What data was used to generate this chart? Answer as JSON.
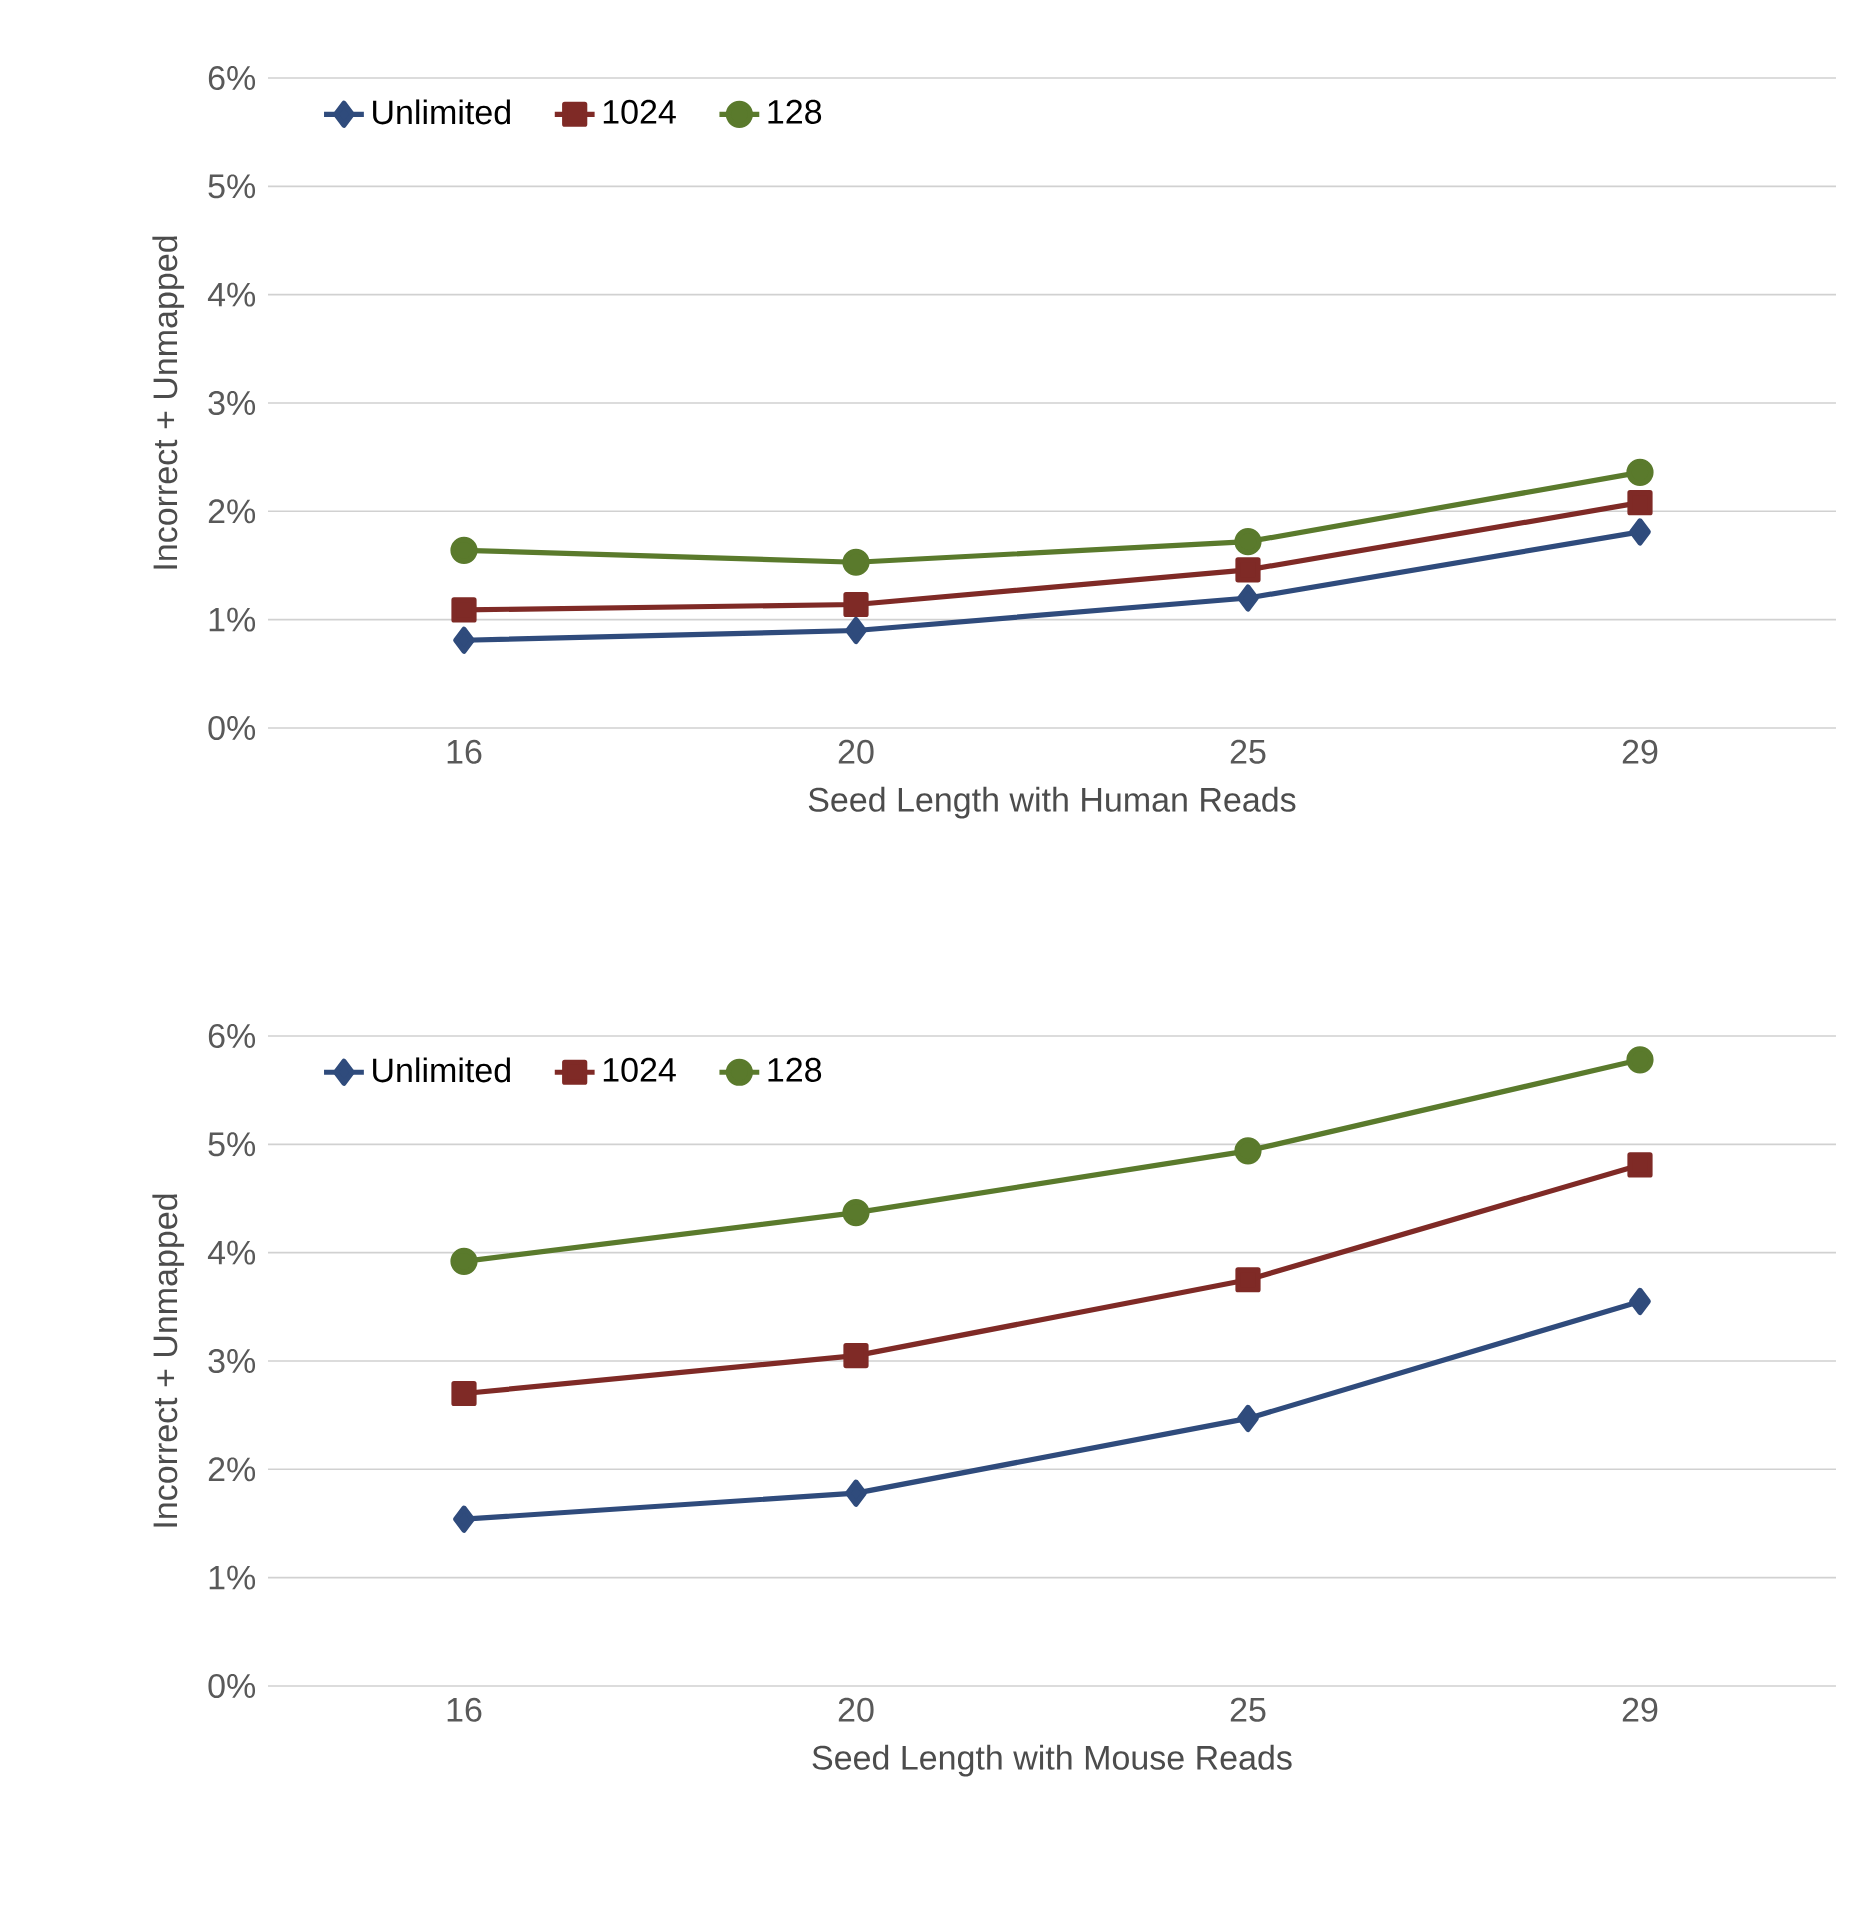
{
  "chart_data": [
    {
      "type": "line",
      "xlabel": "Seed Length with Human Reads",
      "ylabel": "Incorrect + Unmapped",
      "categories": [
        "16",
        "20",
        "25",
        "29"
      ],
      "series": [
        {
          "name": "Unlimited",
          "color": "#2f4b7c",
          "marker": "diamond",
          "values": [
            0.81,
            0.9,
            1.2,
            1.81
          ]
        },
        {
          "name": "1024",
          "color": "#7f2a26",
          "marker": "square",
          "values": [
            1.09,
            1.14,
            1.46,
            2.08
          ]
        },
        {
          "name": "128",
          "color": "#5a7a2c",
          "marker": "circle",
          "values": [
            1.64,
            1.53,
            1.72,
            2.36
          ]
        }
      ],
      "ylim": [
        0,
        6
      ],
      "yticks": [
        {
          "value": 0,
          "label": "0%"
        },
        {
          "value": 1,
          "label": "1%"
        },
        {
          "value": 2,
          "label": "2%"
        },
        {
          "value": 3,
          "label": "3%"
        },
        {
          "value": 4,
          "label": "4%"
        },
        {
          "value": 5,
          "label": "5%"
        },
        {
          "value": 6,
          "label": "6%"
        }
      ],
      "grid": "y",
      "legend": "top left",
      "line_style": "solid"
    },
    {
      "type": "line",
      "xlabel": "Seed Length with Mouse Reads",
      "ylabel": "Incorrect + Unmapped",
      "categories": [
        "16",
        "20",
        "25",
        "29"
      ],
      "series": [
        {
          "name": "Unlimited",
          "color": "#2f4b7c",
          "marker": "diamond",
          "values": [
            1.54,
            1.78,
            2.47,
            3.55
          ]
        },
        {
          "name": "1024",
          "color": "#7f2a26",
          "marker": "square",
          "values": [
            2.7,
            3.05,
            3.75,
            4.81
          ]
        },
        {
          "name": "128",
          "color": "#5a7a2c",
          "marker": "circle",
          "values": [
            3.92,
            4.37,
            4.94,
            5.78
          ]
        }
      ],
      "ylim": [
        0,
        6
      ],
      "yticks": [
        {
          "value": 0,
          "label": "0%"
        },
        {
          "value": 1,
          "label": "1%"
        },
        {
          "value": 2,
          "label": "2%"
        },
        {
          "value": 3,
          "label": "3%"
        },
        {
          "value": 4,
          "label": "4%"
        },
        {
          "value": 5,
          "label": "5%"
        },
        {
          "value": 6,
          "label": "6%"
        }
      ],
      "grid": "y",
      "legend": "top left",
      "line_style": "solid"
    }
  ]
}
